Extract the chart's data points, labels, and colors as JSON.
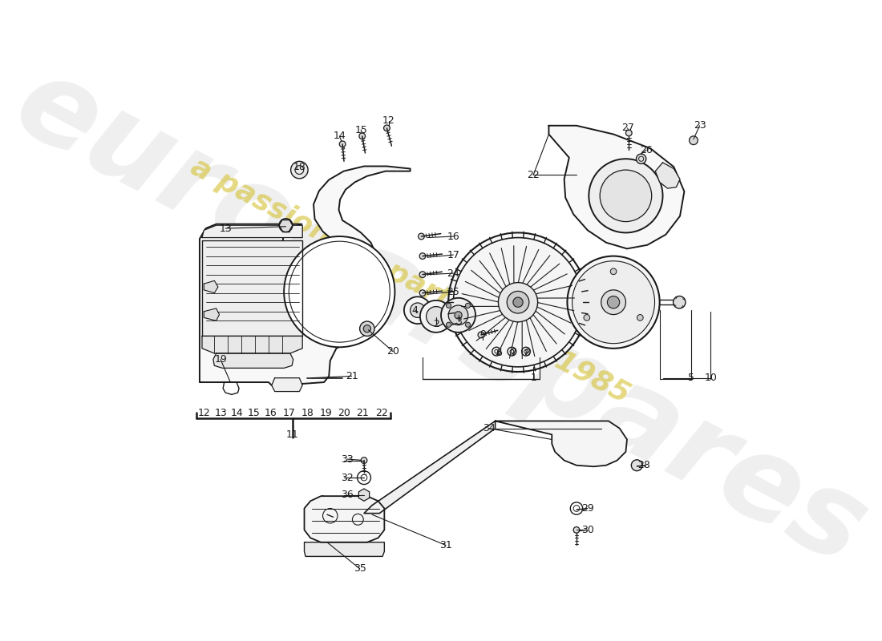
{
  "background": "#ffffff",
  "lc": "#1a1a1a",
  "wm_gray": "#c8c8c8",
  "wm_yellow": "#d4c030",
  "wm_text": "eurocarspares",
  "wm_sub": "a passion for parts since 1985",
  "upper_labels": [
    [
      "14",
      375,
      55
    ],
    [
      "15",
      410,
      45
    ],
    [
      "12",
      455,
      30
    ],
    [
      "18",
      310,
      105
    ],
    [
      "13",
      190,
      205
    ],
    [
      "16",
      560,
      218
    ],
    [
      "17",
      560,
      248
    ],
    [
      "24",
      560,
      278
    ],
    [
      "25",
      560,
      308
    ],
    [
      "22",
      690,
      118
    ],
    [
      "23",
      960,
      38
    ],
    [
      "26",
      873,
      78
    ],
    [
      "27",
      843,
      42
    ],
    [
      "19",
      182,
      418
    ],
    [
      "20",
      462,
      405
    ],
    [
      "21",
      395,
      445
    ],
    [
      "4",
      498,
      338
    ],
    [
      "2",
      532,
      360
    ],
    [
      "3",
      568,
      356
    ],
    [
      "9",
      608,
      378
    ],
    [
      "6",
      634,
      408
    ],
    [
      "7",
      658,
      408
    ],
    [
      "8",
      680,
      408
    ],
    [
      "1",
      690,
      448
    ],
    [
      "5",
      946,
      448
    ],
    [
      "10",
      978,
      448
    ]
  ],
  "bracket_labels": [
    [
      "12",
      155,
      505
    ],
    [
      "13",
      182,
      505
    ],
    [
      "14",
      209,
      505
    ],
    [
      "15",
      236,
      505
    ],
    [
      "16",
      263,
      505
    ],
    [
      "17",
      293,
      505
    ],
    [
      "18",
      323,
      505
    ],
    [
      "19",
      353,
      505
    ],
    [
      "20",
      383,
      505
    ],
    [
      "21",
      413,
      505
    ],
    [
      "22",
      443,
      505
    ],
    [
      "11",
      299,
      540
    ]
  ],
  "lower_labels": [
    [
      "33",
      388,
      580
    ],
    [
      "32",
      388,
      610
    ],
    [
      "36",
      388,
      638
    ],
    [
      "34",
      618,
      530
    ],
    [
      "28",
      870,
      590
    ],
    [
      "29",
      778,
      660
    ],
    [
      "30",
      778,
      695
    ],
    [
      "31",
      548,
      720
    ],
    [
      "35",
      408,
      758
    ]
  ]
}
